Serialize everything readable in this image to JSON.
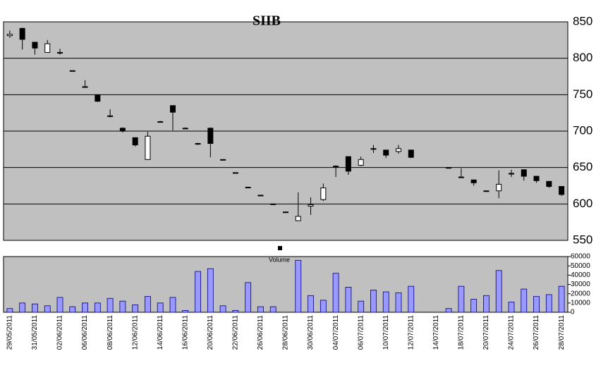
{
  "chart_data": [
    {
      "type": "candlestick",
      "title": "SIIB",
      "open": [
        831,
        841,
        822,
        808,
        808,
        783,
        761,
        750,
        721,
        704,
        691,
        661,
        713,
        735,
        704,
        683,
        704,
        661,
        643,
        623,
        612,
        600,
        589,
        577,
        597,
        606,
        651,
        665,
        653,
        675,
        674,
        672,
        674,
        null,
        null,
        650,
        637,
        633,
        618,
        618,
        641,
        647,
        638,
        631,
        624
      ],
      "high": [
        838,
        842,
        822,
        825,
        813,
        783,
        770,
        750,
        730,
        705,
        691,
        699,
        714,
        735,
        705,
        684,
        705,
        661,
        643,
        623,
        612,
        600,
        589,
        616,
        609,
        628,
        653,
        665,
        665,
        681,
        674,
        681,
        674,
        null,
        null,
        650,
        649,
        633,
        618,
        646,
        647,
        647,
        638,
        631,
        624
      ],
      "low": [
        828,
        812,
        805,
        808,
        805,
        782,
        761,
        740,
        719,
        698,
        679,
        661,
        712,
        701,
        704,
        681,
        664,
        661,
        643,
        623,
        612,
        600,
        589,
        577,
        585,
        604,
        637,
        640,
        652,
        670,
        663,
        669,
        663,
        null,
        null,
        650,
        637,
        625,
        618,
        608,
        637,
        632,
        629,
        622,
        611
      ],
      "close": [
        833,
        826,
        814,
        820,
        808,
        783,
        761,
        741,
        720,
        701,
        681,
        693,
        713,
        726,
        704,
        683,
        683,
        661,
        643,
        623,
        612,
        600,
        589,
        583,
        599,
        622,
        652,
        645,
        661,
        676,
        667,
        676,
        664,
        null,
        null,
        650,
        637,
        629,
        618,
        627,
        642,
        638,
        632,
        624,
        613
      ],
      "up_color": "#ffffff",
      "down_color": "#000000",
      "ylim": [
        550,
        850
      ],
      "yticks": [
        550,
        600,
        650,
        700,
        750,
        800,
        850
      ],
      "grid": true
    },
    {
      "type": "bar",
      "title": "Volume",
      "categories": [
        "29/05/2011",
        null,
        "31/05/2011",
        null,
        "02/06/2011",
        null,
        "06/06/2011",
        null,
        "08/06/2011",
        null,
        "12/06/2011",
        null,
        "14/06/2011",
        null,
        "16/06/2011",
        null,
        "20/06/2011",
        null,
        "22/06/2011",
        null,
        "26/06/2011",
        null,
        "28/06/2011",
        null,
        "30/06/2011",
        null,
        "04/07/2011",
        null,
        "06/07/2011",
        null,
        "10/07/2011",
        null,
        "12/07/2011",
        null,
        "14/07/2011",
        null,
        "18/07/2011",
        null,
        "20/07/2011",
        null,
        "24/07/2011",
        null,
        "26/07/2011",
        null,
        "28/07/2011"
      ],
      "values": [
        4000,
        10000,
        9000,
        7000,
        16000,
        6000,
        10000,
        10000,
        15000,
        12000,
        8000,
        17000,
        10000,
        16000,
        2000,
        44000,
        47000,
        7000,
        2000,
        32000,
        6000,
        6000,
        0,
        56000,
        18000,
        13000,
        42000,
        27000,
        12000,
        24000,
        22000,
        21000,
        28000,
        null,
        null,
        4000,
        28000,
        14000,
        18000,
        45000,
        11000,
        25000,
        17000,
        19000,
        28000
      ],
      "color": "#9999ff",
      "ylim": [
        0,
        60000
      ],
      "yticks": [
        0,
        10000,
        20000,
        30000,
        40000,
        50000,
        60000
      ],
      "grid": false
    }
  ]
}
